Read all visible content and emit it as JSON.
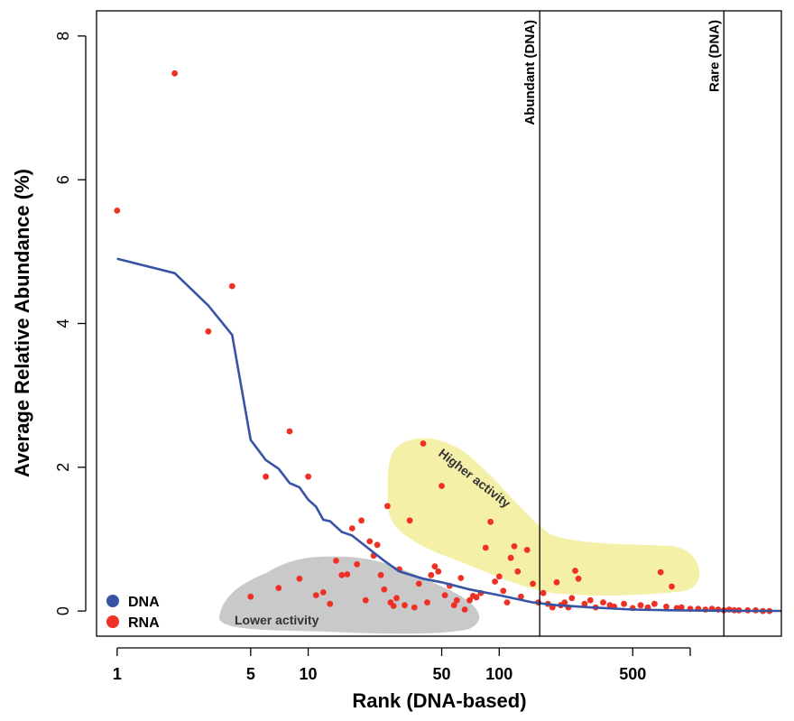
{
  "chart_data": {
    "type": "scatter",
    "xlabel": "Rank (DNA-based)",
    "ylabel": "Average Relative Abundance (%)",
    "x_scale": "log",
    "xlim": [
      0.78,
      3000
    ],
    "ylim": [
      -0.35,
      8.35
    ],
    "x_ticks": [
      1,
      5,
      10,
      50,
      100,
      500
    ],
    "x_tick_labels": [
      "1",
      "5",
      "10",
      "50",
      "100",
      "500"
    ],
    "y_ticks": [
      0,
      2,
      4,
      6,
      8
    ],
    "y_tick_labels": [
      "0",
      "2",
      "4",
      "6",
      "8"
    ],
    "vertical_lines": [
      {
        "x": 163,
        "label": "Abundant (DNA)"
      },
      {
        "x": 1500,
        "label": "Rare (DNA)"
      }
    ],
    "regions": [
      {
        "label": "Higher activity",
        "color": "#f5f0a8"
      },
      {
        "label": "Lower activity",
        "color": "#c9c9c9"
      }
    ],
    "legend": {
      "position": "bottom-left",
      "items": [
        {
          "label": "DNA",
          "color": "#3953a4"
        },
        {
          "label": "RNA",
          "color": "#ee3124"
        }
      ]
    },
    "series": [
      {
        "name": "DNA",
        "kind": "line",
        "color": "#3953a4",
        "x": [
          1,
          2,
          3,
          4,
          5,
          6,
          7,
          8,
          9,
          10,
          11,
          12,
          13,
          15,
          17,
          20,
          25,
          30,
          40,
          50,
          70,
          100,
          150,
          200,
          300,
          500,
          800,
          1200,
          1800,
          3000
        ],
        "y": [
          4.9,
          4.7,
          4.25,
          3.84,
          2.38,
          2.1,
          1.98,
          1.78,
          1.72,
          1.55,
          1.45,
          1.27,
          1.25,
          1.1,
          1.05,
          0.9,
          0.7,
          0.55,
          0.45,
          0.4,
          0.3,
          0.22,
          0.12,
          0.08,
          0.05,
          0.02,
          0.01,
          0.005,
          0.003,
          0.001
        ]
      },
      {
        "name": "RNA",
        "kind": "points",
        "color": "#ee3124",
        "x": [
          1,
          2,
          3,
          4,
          5,
          6,
          7,
          8,
          9,
          10,
          11,
          12,
          13,
          14,
          15,
          16,
          17,
          18,
          19,
          20,
          21,
          22,
          23,
          24,
          25,
          26,
          27,
          28,
          29,
          30,
          32,
          34,
          36,
          38,
          40,
          42,
          44,
          46,
          48,
          50,
          52,
          55,
          58,
          60,
          63,
          66,
          70,
          73,
          76,
          80,
          85,
          90,
          95,
          100,
          105,
          110,
          115,
          120,
          125,
          130,
          140,
          150,
          160,
          170,
          180,
          190,
          200,
          210,
          220,
          230,
          240,
          250,
          260,
          280,
          300,
          320,
          350,
          380,
          400,
          450,
          500,
          550,
          600,
          650,
          700,
          750,
          800,
          850,
          900,
          1000,
          1100,
          1200,
          1300,
          1400,
          1500,
          1600,
          1700,
          1800,
          2000,
          2200,
          2400,
          2600
        ],
        "y": [
          5.57,
          7.48,
          3.89,
          4.52,
          0.2,
          1.87,
          0.32,
          2.5,
          0.45,
          1.87,
          0.22,
          0.26,
          0.1,
          0.7,
          0.5,
          0.51,
          1.15,
          0.65,
          1.26,
          0.15,
          0.97,
          0.77,
          0.92,
          0.5,
          0.3,
          1.46,
          0.12,
          0.07,
          0.18,
          0.58,
          0.08,
          1.26,
          0.05,
          0.38,
          2.33,
          0.12,
          0.5,
          0.62,
          0.55,
          1.74,
          0.22,
          0.35,
          0.08,
          0.15,
          0.46,
          0.02,
          0.15,
          0.21,
          0.19,
          0.25,
          0.88,
          1.24,
          0.41,
          0.48,
          0.28,
          0.12,
          0.74,
          0.9,
          0.55,
          0.2,
          0.85,
          0.38,
          0.12,
          0.25,
          0.1,
          0.05,
          0.4,
          0.08,
          0.12,
          0.05,
          0.18,
          0.56,
          0.45,
          0.1,
          0.15,
          0.05,
          0.12,
          0.08,
          0.06,
          0.1,
          0.04,
          0.08,
          0.05,
          0.1,
          0.54,
          0.06,
          0.34,
          0.04,
          0.05,
          0.03,
          0.03,
          0.02,
          0.03,
          0.02,
          0.01,
          0.02,
          0.01,
          0.01,
          0.01,
          0.01,
          0.0,
          0.0
        ]
      }
    ]
  }
}
